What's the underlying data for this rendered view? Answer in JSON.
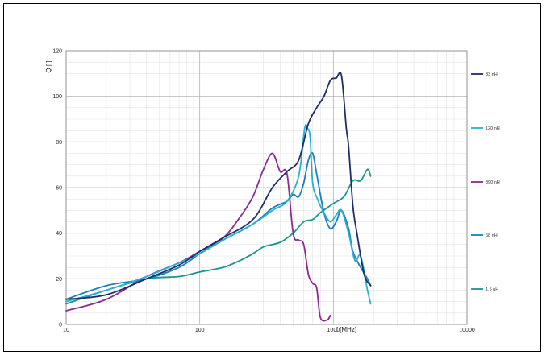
{
  "chart_data": {
    "type": "line",
    "title": "",
    "xlabel": "f [MHz]",
    "ylabel": "Q [ ]",
    "x_scale": "log",
    "xlim": [
      10,
      10000
    ],
    "ylim": [
      0,
      120
    ],
    "grid": true,
    "legend_position": "right",
    "x_ticks": [
      "10",
      "100",
      "1000",
      "10000"
    ],
    "y_ticks": [
      "0",
      "20",
      "40",
      "60",
      "80",
      "100",
      "120"
    ],
    "series": [
      {
        "name": "33 nH",
        "color": "#1f2d6b",
        "x": [
          10,
          20,
          40,
          70,
          100,
          150,
          250,
          350,
          450,
          550,
          650,
          750,
          850,
          950,
          1050,
          1150,
          1250,
          1300,
          1400,
          1500,
          1700,
          1900
        ],
        "y": [
          11,
          13,
          20,
          26,
          32,
          38,
          46,
          60,
          67,
          72,
          88,
          95,
          100,
          107,
          108,
          109,
          86,
          78,
          52,
          40,
          22,
          17
        ]
      },
      {
        "name": "120 nH",
        "color": "#29b0d0",
        "x": [
          10,
          20,
          40,
          70,
          100,
          150,
          250,
          350,
          450,
          550,
          610,
          640,
          670,
          700,
          760,
          850,
          950,
          1050,
          1150,
          1300,
          1450,
          1600,
          1800,
          1900
        ],
        "y": [
          10,
          15,
          21,
          27,
          31,
          37,
          44,
          50,
          54,
          65,
          86,
          86,
          82,
          62,
          55,
          49,
          45,
          48,
          50,
          40,
          28,
          30,
          15,
          9
        ]
      },
      {
        "name": "390 nH",
        "color": "#8b2a8f",
        "x": [
          10,
          20,
          40,
          70,
          100,
          150,
          200,
          250,
          300,
          350,
          400,
          450,
          500,
          550,
          600,
          650,
          700,
          750,
          800,
          900,
          950
        ],
        "y": [
          6,
          11,
          21,
          27,
          32,
          38,
          47,
          56,
          68,
          75,
          67,
          66,
          40,
          37,
          35,
          22,
          18,
          16,
          3,
          2,
          4
        ]
      },
      {
        "name": "68 nH",
        "color": "#1a7fc0",
        "x": [
          10,
          20,
          40,
          70,
          100,
          150,
          250,
          350,
          450,
          500,
          550,
          600,
          650,
          700,
          750,
          850,
          950,
          1050,
          1150,
          1300,
          1400,
          1600,
          1800,
          1900
        ],
        "y": [
          11,
          17,
          20,
          25,
          31,
          37,
          44,
          51,
          54,
          57,
          56,
          62,
          72,
          75,
          66,
          49,
          42,
          45,
          50,
          42,
          32,
          25,
          20,
          17
        ]
      },
      {
        "name": "1.5 nH",
        "color": "#1a9590",
        "x": [
          10,
          20,
          40,
          70,
          100,
          150,
          200,
          250,
          300,
          400,
          500,
          600,
          700,
          800,
          1000,
          1200,
          1400,
          1600,
          1800,
          1900
        ],
        "y": [
          9,
          15,
          20,
          21,
          23,
          25,
          28,
          31,
          34,
          36,
          40,
          45,
          46,
          49,
          53,
          56,
          63,
          63,
          68,
          65
        ]
      }
    ]
  }
}
